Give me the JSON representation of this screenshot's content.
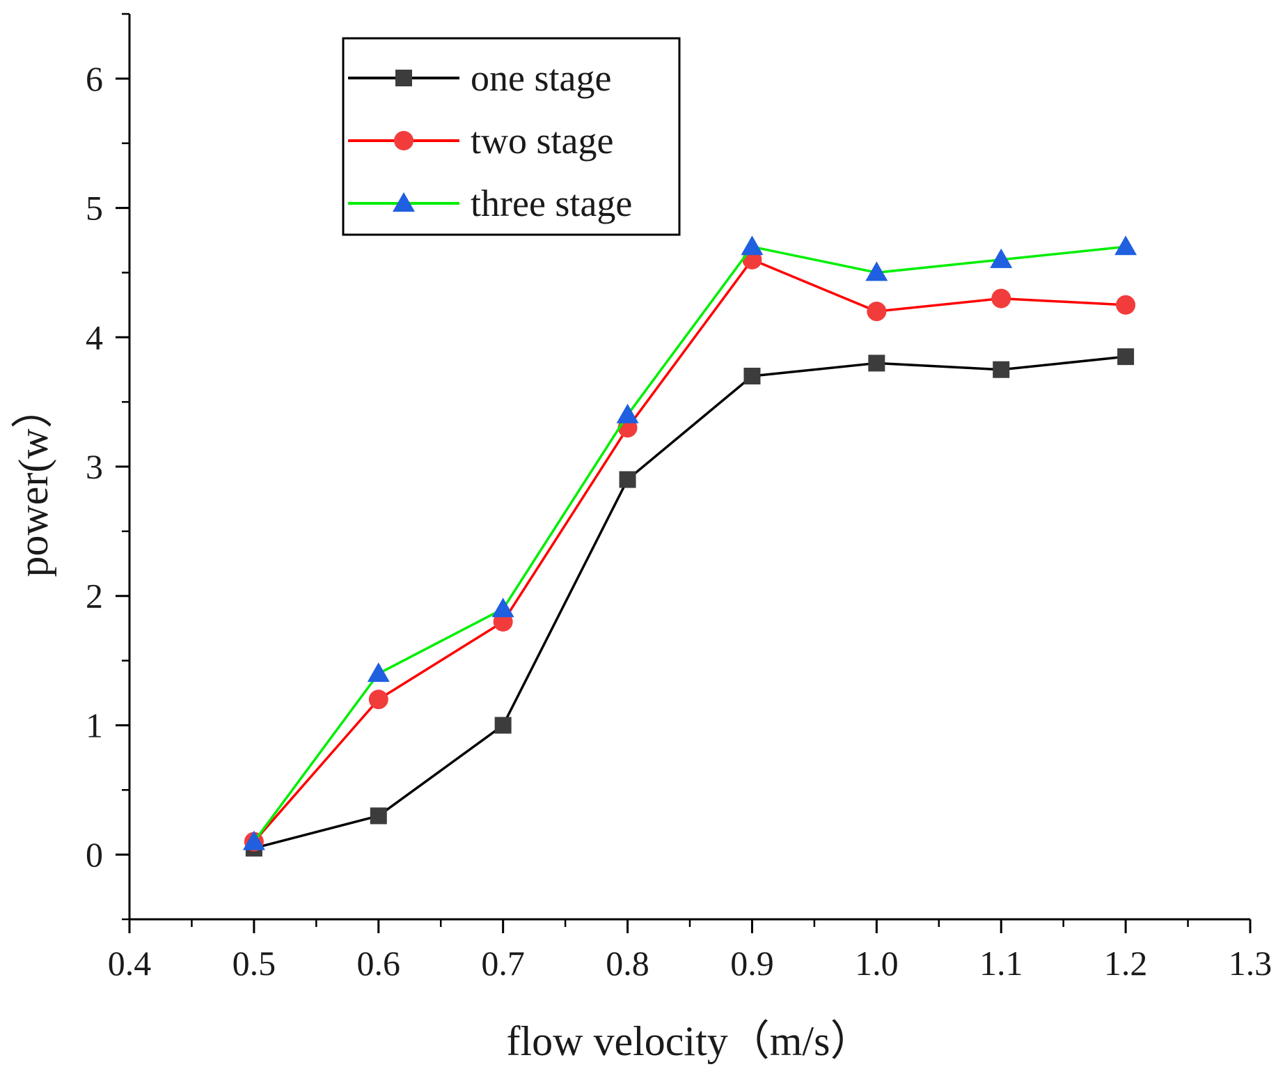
{
  "chart_data": {
    "type": "line",
    "xlabel": "flow velocity（m/s）",
    "ylabel": "power(w）",
    "xlim": [
      0.4,
      1.3
    ],
    "ylim": [
      -0.5,
      6.5
    ],
    "x_ticks": [
      "0.4",
      "0.5",
      "0.6",
      "0.7",
      "0.8",
      "0.9",
      "1.0",
      "1.1",
      "1.2",
      "1.3"
    ],
    "y_ticks": [
      "0",
      "1",
      "2",
      "3",
      "4",
      "5",
      "6"
    ],
    "x": [
      0.5,
      0.6,
      0.7,
      0.8,
      0.9,
      1.0,
      1.1,
      1.2
    ],
    "legend_position": "top-left",
    "series": [
      {
        "name": "one stage",
        "marker": "square",
        "line_color": "#000000",
        "marker_color": "#3c3c3c",
        "values": [
          0.05,
          0.3,
          1.0,
          2.9,
          3.7,
          3.8,
          3.75,
          3.85
        ]
      },
      {
        "name": "two stage",
        "marker": "circle",
        "line_color": "#ff0000",
        "marker_color": "#f23c3c",
        "values": [
          0.1,
          1.2,
          1.8,
          3.3,
          4.6,
          4.2,
          4.3,
          4.25
        ]
      },
      {
        "name": "three stage",
        "marker": "triangle",
        "line_color": "#00ee00",
        "marker_color": "#1f5fe0",
        "values": [
          0.1,
          1.4,
          1.9,
          3.4,
          4.7,
          4.5,
          4.6,
          4.7
        ]
      }
    ]
  }
}
